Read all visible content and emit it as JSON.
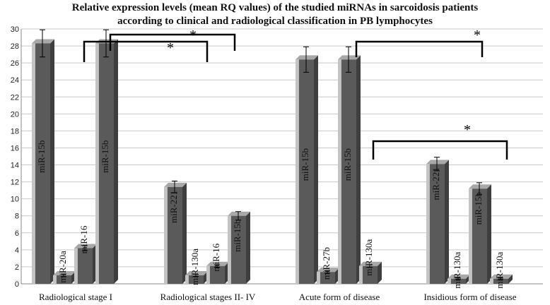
{
  "chart_data": {
    "type": "bar",
    "title_line1": "Relative expression levels (mean RQ values) of the studied miRNAs in sarcoidosis patients",
    "title_line2": "according to clinical and radiological classification in PB lymphocytes",
    "ylim": [
      0,
      30
    ],
    "yticks": [
      0,
      2,
      4,
      6,
      8,
      10,
      12,
      14,
      16,
      18,
      20,
      22,
      24,
      26,
      28,
      30
    ],
    "grid": true,
    "categories": [
      "Radiological stage I",
      "Radiological  stages  II- IV",
      "Acute form of disease",
      "Insidious  form of disease"
    ],
    "groups": [
      {
        "category": "Radiological stage I",
        "bars": [
          {
            "label": "miR-15b",
            "value": 28.3,
            "error": 1.6
          },
          {
            "label": "miR-20a",
            "value": 1.0,
            "error": 0.15
          },
          {
            "label": "miR-16",
            "value": 4.2,
            "error": 0.3
          },
          {
            "label": "miR-15b",
            "value": 28.3,
            "error": 1.6
          }
        ]
      },
      {
        "category": "Radiological  stages  II- IV",
        "bars": [
          {
            "label": "miR-221",
            "value": 11.4,
            "error": 0.7
          },
          {
            "label": "miR-130a",
            "value": 1.0,
            "error": 0.12
          },
          {
            "label": "miR-16",
            "value": 2.1,
            "error": 0.15
          },
          {
            "label": "miR-15b",
            "value": 8.0,
            "error": 0.5
          }
        ]
      },
      {
        "category": "Acute form of disease",
        "bars": [
          {
            "label": "miR-15b",
            "value": 26.4,
            "error": 1.5
          },
          {
            "label": "miR-27b",
            "value": 1.4,
            "error": 0.15
          },
          {
            "label": "miR-15b",
            "value": 26.4,
            "error": 1.5
          },
          {
            "label": "miR-130a",
            "value": 2.1,
            "error": 0.15
          }
        ]
      },
      {
        "category": "Insidious  form of disease",
        "bars": [
          {
            "label": "miR-221",
            "value": 14.1,
            "error": 0.8
          },
          {
            "label": "miR-130a",
            "value": 0.6,
            "error": 0.08
          },
          {
            "label": "miR-15b",
            "value": 11.2,
            "error": 0.7
          },
          {
            "label": "miR-130a",
            "value": 0.6,
            "error": 0.08
          }
        ]
      }
    ],
    "annotations": [
      "*",
      "*",
      "*",
      "*"
    ],
    "colors": {
      "bar_front": "#5a5a5a",
      "bar_light": "#c4c4c4",
      "bar_top": "#a8a8a8",
      "bracket": "#000000"
    }
  }
}
